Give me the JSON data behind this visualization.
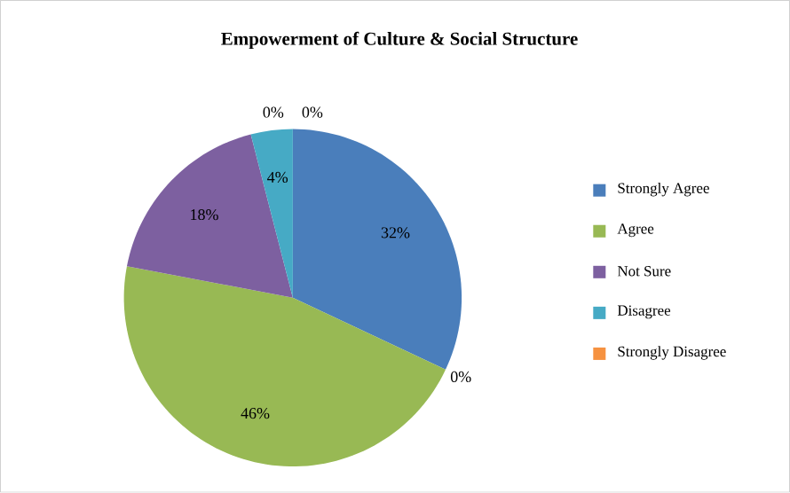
{
  "chart_data": {
    "type": "pie",
    "title": "Empowerment of Culture & Social Structure",
    "categories": [
      "Strongly Agree",
      null,
      "Agree",
      "Not Sure",
      "Disagree",
      "Strongly Disagree",
      null
    ],
    "values": [
      32,
      0,
      46,
      18,
      4,
      0,
      0
    ],
    "value_labels": [
      "32%",
      "0%",
      "46%",
      "18%",
      "4%",
      "0%",
      "0%"
    ],
    "colors": [
      "#4a7ebb",
      "#c0504d",
      "#98b954",
      "#7d60a0",
      "#46aac5",
      "#f69240",
      "#a5a5a5"
    ],
    "legend": "right"
  }
}
